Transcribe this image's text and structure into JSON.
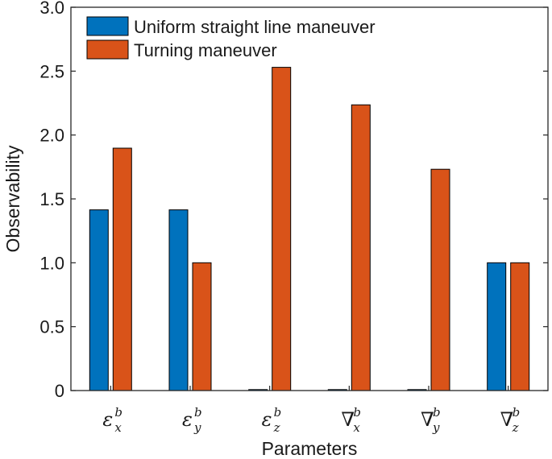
{
  "chart_data": {
    "type": "bar",
    "categories": [
      {
        "main": "ε",
        "sub": "x",
        "sup": "b"
      },
      {
        "main": "ε",
        "sub": "y",
        "sup": "b"
      },
      {
        "main": "ε",
        "sub": "z",
        "sup": "b"
      },
      {
        "main": "∇",
        "sub": "x",
        "sup": "b"
      },
      {
        "main": "∇",
        "sub": "y",
        "sup": "b"
      },
      {
        "main": "∇",
        "sub": "z",
        "sup": "b"
      }
    ],
    "series": [
      {
        "name": "Uniform straight line maneuver",
        "color": "#0072BD",
        "values": [
          1.414,
          1.414,
          0.0,
          0.0,
          0.0,
          1.0
        ]
      },
      {
        "name": "Turning maneuver",
        "color": "#D95319",
        "values": [
          1.897,
          1.0,
          2.53,
          2.236,
          1.732,
          1.0
        ]
      }
    ],
    "xlabel": "Parameters",
    "ylabel": "Observability",
    "ylim": [
      0,
      3.0
    ],
    "yticks": [
      "0",
      "0.5",
      "1.0",
      "1.5",
      "2.0",
      "2.5",
      "3.0"
    ],
    "ytick_values": [
      0,
      0.5,
      1.0,
      1.5,
      2.0,
      2.5,
      3.0
    ],
    "grid": false,
    "legend_position": "top-left"
  }
}
